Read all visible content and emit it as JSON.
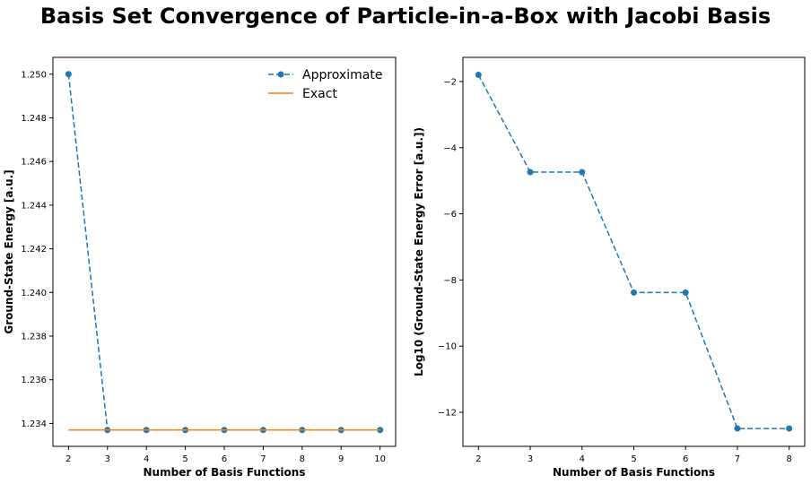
{
  "figure": {
    "title": "Basis Set Convergence of Particle-in-a-Box with Jacobi Basis"
  },
  "colors": {
    "approx": "#1f77b4",
    "exact": "#ff7f0e"
  },
  "chart_data": [
    {
      "type": "line",
      "xlabel": "Number of Basis Functions",
      "ylabel": "Ground-State Energy [a.u.]",
      "xlim": [
        1.6,
        10.4
      ],
      "ylim": [
        1.23295,
        1.25077
      ],
      "x_ticks": [
        2,
        3,
        4,
        5,
        6,
        7,
        8,
        9,
        10
      ],
      "y_ticks": [
        1.234,
        1.236,
        1.238,
        1.24,
        1.242,
        1.244,
        1.246,
        1.248,
        1.25
      ],
      "y_tick_labels": [
        "1.234",
        "1.236",
        "1.238",
        "1.240",
        "1.242",
        "1.244",
        "1.246",
        "1.248",
        "1.250"
      ],
      "grid": false,
      "legend_position": "upper right",
      "series": [
        {
          "name": "Approximate",
          "style": "dashed-markers",
          "x": [
            2,
            3,
            4,
            5,
            6,
            7,
            8,
            9,
            10
          ],
          "y": [
            1.25,
            1.2337,
            1.2337,
            1.2337,
            1.2337,
            1.2337,
            1.2337,
            1.2337,
            1.2337
          ]
        },
        {
          "name": "Exact",
          "style": "solid",
          "x": [
            2,
            10
          ],
          "y": [
            1.2337,
            1.2337
          ]
        }
      ]
    },
    {
      "type": "line",
      "xlabel": "Number of Basis Functions",
      "ylabel": "Log10 (Ground-State Energy Error [a.u.])",
      "xlim": [
        1.7,
        8.3
      ],
      "ylim": [
        -13.03,
        -1.27
      ],
      "x_ticks": [
        2,
        3,
        4,
        5,
        6,
        7,
        8
      ],
      "y_ticks": [
        -2,
        -4,
        -6,
        -8,
        -10,
        -12
      ],
      "y_tick_labels": [
        "−2",
        "−4",
        "−6",
        "−8",
        "−10",
        "−12"
      ],
      "grid": false,
      "series": [
        {
          "style": "dashed-markers",
          "x": [
            2,
            3,
            4,
            5,
            6,
            7,
            8
          ],
          "y": [
            -1.8,
            -4.74,
            -4.74,
            -8.38,
            -8.38,
            -12.49,
            -12.49
          ]
        }
      ]
    }
  ]
}
